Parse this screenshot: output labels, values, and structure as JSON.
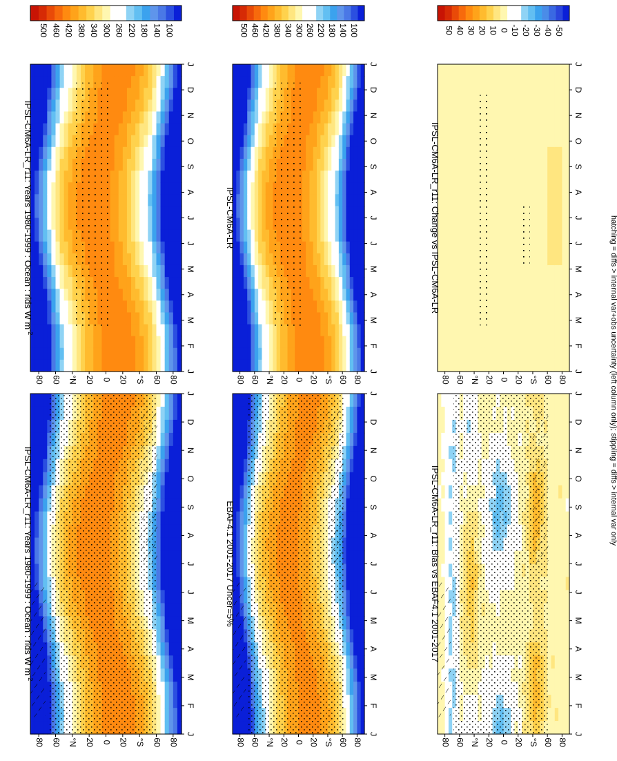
{
  "figure": {
    "footnote": "hatching = diffs > internal var+obs uncertainty (left column only); stippling = diffs > internal var only"
  },
  "colors": {
    "abs_scale": [
      "#0a1fd8",
      "#2b4fe0",
      "#4a78e6",
      "#5f95eb",
      "#3ba2ee",
      "#62bff2",
      "#8fd3f5",
      "#ffffff",
      "#ffffff",
      "#fff7b0",
      "#ffe680",
      "#ffd24d",
      "#ffbb2e",
      "#ffa31a",
      "#ff8a10",
      "#f76a0c",
      "#e94a08",
      "#d62a05",
      "#c81404"
    ],
    "diff_scale": [
      "#0a1fd8",
      "#2a45dc",
      "#3a68e2",
      "#4a8ce8",
      "#3ba2ee",
      "#62bff2",
      "#8fd3f5",
      "#ffffff",
      "#ffffff",
      "#fff7b0",
      "#ffe680",
      "#ffd24d",
      "#ffbb2e",
      "#ffa31a",
      "#ff8a10",
      "#f76a0c",
      "#e94a08",
      "#d62a05",
      "#c81404"
    ]
  },
  "chart_data": [
    {
      "id": "model-left",
      "type": "heatmap",
      "title": "IPSL-CM6A-LR_r11: Years 1980-1999 : Ocean : rlds W m",
      "title_sup": "-2",
      "x": [
        "J",
        "F",
        "M",
        "A",
        "M",
        "J",
        "J",
        "A",
        "S",
        "O",
        "N",
        "D",
        "J"
      ],
      "y_ticks": [
        "80",
        "60",
        "°N",
        "20",
        "0",
        "20",
        "°S",
        "60",
        "80"
      ],
      "y_extra": "D",
      "cmap": "abs",
      "marks": "stipple-hatch",
      "colorbar": [
        "500",
        "460",
        "420",
        "380",
        "340",
        "300",
        "260",
        "220",
        "180",
        "140",
        "100"
      ],
      "zlim": [
        80,
        520
      ]
    },
    {
      "id": "obs",
      "type": "heatmap",
      "title": "EBAF4.1 2001-2017 Uncer=5%",
      "title_sup": "",
      "x": [
        "J",
        "F",
        "M",
        "A",
        "M",
        "J",
        "J",
        "A",
        "S",
        "O",
        "N",
        "D",
        "J"
      ],
      "y_ticks": [
        "80",
        "60",
        "°N",
        "20",
        "0",
        "20",
        "°S",
        "60",
        "80"
      ],
      "y_extra": "D",
      "cmap": "abs",
      "marks": "stipple-hatch",
      "colorbar": [
        "500",
        "460",
        "420",
        "380",
        "340",
        "300",
        "260",
        "220",
        "180",
        "140",
        "100"
      ],
      "zlim": [
        80,
        520
      ]
    },
    {
      "id": "bias",
      "type": "heatmap",
      "title": "IPSL-CM6A-LR_r11: Bias vs EBAF4.1 2001-2017",
      "title_sup": "",
      "x": [
        "J",
        "F",
        "M",
        "A",
        "M",
        "J",
        "J",
        "A",
        "S",
        "O",
        "N",
        "D",
        "J"
      ],
      "y_ticks": [
        "80",
        "60",
        "°N",
        "20",
        "0",
        "20",
        "°S",
        "60",
        "80"
      ],
      "y_extra": "D",
      "cmap": "diff",
      "marks": "stipple-hatch",
      "colorbar": [
        "50",
        "40",
        "30",
        "20",
        "10",
        "0",
        "-10",
        "-20",
        "-30",
        "-40",
        "-50"
      ],
      "zlim": [
        -55,
        55
      ]
    },
    {
      "id": "model-right",
      "type": "heatmap",
      "title": "IPSL-CM6A-LR_r11: Years 1980-1999 : Ocean : rlds W m",
      "title_sup": "-2",
      "x": [
        "J",
        "F",
        "M",
        "A",
        "M",
        "J",
        "J",
        "A",
        "S",
        "O",
        "N",
        "D",
        "J"
      ],
      "y_ticks": [
        "80",
        "60",
        "°N",
        "20",
        "0",
        "20",
        "°S",
        "60",
        "80"
      ],
      "y_extra": "D",
      "cmap": "abs",
      "marks": "stipple-light",
      "colorbar": [
        "500",
        "460",
        "420",
        "380",
        "340",
        "300",
        "260",
        "220",
        "180",
        "140",
        "100"
      ],
      "zlim": [
        80,
        520
      ]
    },
    {
      "id": "model-ref",
      "type": "heatmap",
      "title": "IPSL-CM6A-LR",
      "title_sup": "",
      "x": [
        "J",
        "F",
        "M",
        "A",
        "M",
        "J",
        "J",
        "A",
        "S",
        "O",
        "N",
        "D",
        "J"
      ],
      "y_ticks": [
        "80",
        "60",
        "°N",
        "20",
        "0",
        "20",
        "°S",
        "60",
        "80"
      ],
      "y_extra": "D",
      "cmap": "abs",
      "marks": "stipple-light",
      "colorbar": [
        "500",
        "460",
        "420",
        "380",
        "340",
        "300",
        "260",
        "220",
        "180",
        "140",
        "100"
      ],
      "zlim": [
        80,
        520
      ]
    },
    {
      "id": "change",
      "type": "heatmap",
      "title": "IPSL-CM6A-LR_r11: Change vs IPSL-CM6A-LR",
      "title_sup": "",
      "x": [
        "J",
        "F",
        "M",
        "A",
        "M",
        "J",
        "J",
        "A",
        "S",
        "O",
        "N",
        "D",
        "J"
      ],
      "y_ticks": [
        "80",
        "60",
        "°N",
        "20",
        "0",
        "20",
        "°S",
        "60",
        "80"
      ],
      "y_extra": "D",
      "cmap": "diff",
      "marks": "change",
      "colorbar": [
        "50",
        "40",
        "30",
        "20",
        "10",
        "0",
        "-10",
        "-20",
        "-30",
        "-40",
        "-50"
      ],
      "zlim": [
        -55,
        55
      ]
    }
  ]
}
